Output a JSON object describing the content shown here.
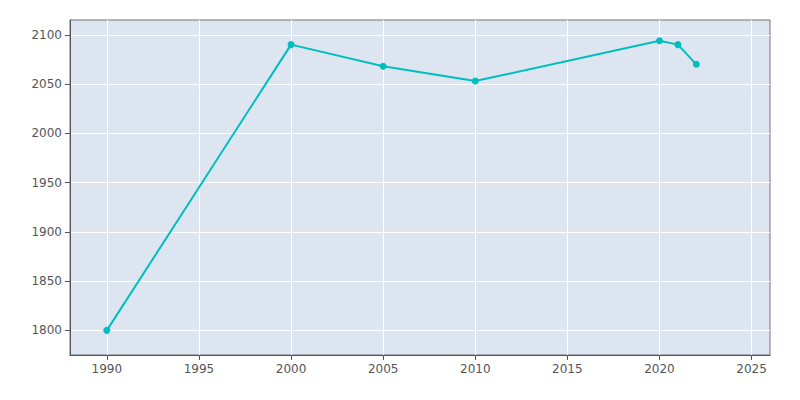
{
  "chart_data": {
    "type": "line",
    "x": [
      1990,
      2000,
      2005,
      2010,
      2020,
      2021,
      2022
    ],
    "values": [
      1800,
      2090,
      2068,
      2053,
      2094,
      2090,
      2070
    ],
    "color": "#00BEBE",
    "marker": "circle",
    "xlim": [
      1988,
      2026
    ],
    "ylim": [
      1775,
      2115
    ],
    "xticks": [
      1990,
      1995,
      2000,
      2005,
      2010,
      2015,
      2020,
      2025
    ],
    "yticks": [
      1800,
      1850,
      1900,
      1950,
      2000,
      2050,
      2100
    ],
    "grid": true
  }
}
